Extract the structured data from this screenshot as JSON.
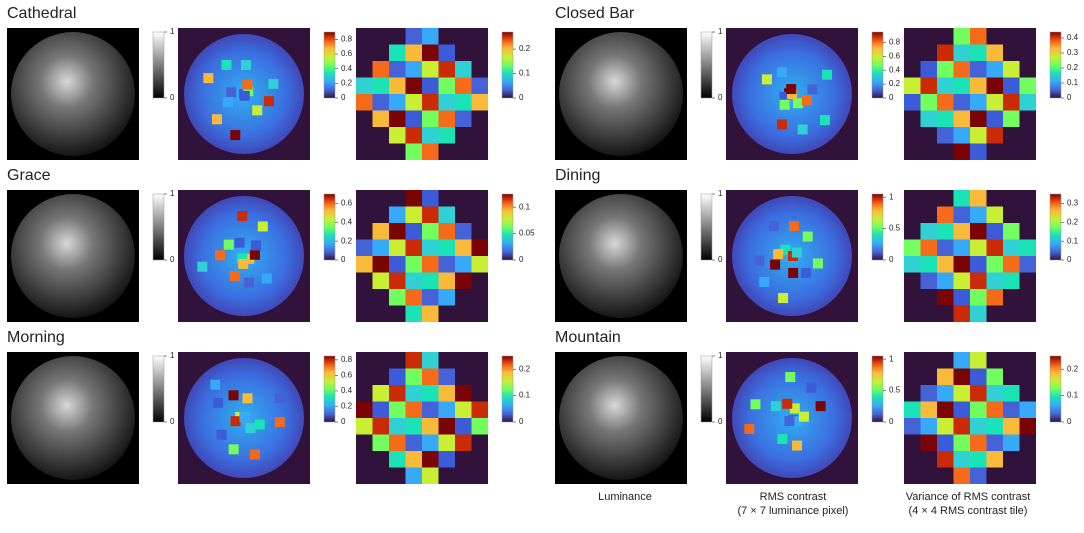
{
  "panels": [
    {
      "title": "Cathedral",
      "luminance": {
        "lim": [
          0,
          1
        ],
        "ticks": [
          0,
          1
        ]
      },
      "rms": {
        "lim": [
          0,
          0.9
        ],
        "ticks": [
          0,
          0.2,
          0.4,
          0.6,
          0.8
        ]
      },
      "variance": {
        "lim": [
          0,
          0.27
        ],
        "ticks": [
          0,
          0.1,
          0.2
        ]
      }
    },
    {
      "title": "Closed Bar",
      "luminance": {
        "lim": [
          0,
          1
        ],
        "ticks": [
          0,
          1
        ]
      },
      "rms": {
        "lim": [
          0,
          0.95
        ],
        "ticks": [
          0,
          0.2,
          0.4,
          0.6,
          0.8
        ]
      },
      "variance": {
        "lim": [
          0,
          0.44
        ],
        "ticks": [
          0,
          0.1,
          0.2,
          0.3,
          0.4
        ]
      }
    },
    {
      "title": "Grace",
      "luminance": {
        "lim": [
          0,
          1
        ],
        "ticks": [
          0,
          1
        ]
      },
      "rms": {
        "lim": [
          0,
          0.7
        ],
        "ticks": [
          0,
          0.2,
          0.4,
          0.6
        ]
      },
      "variance": {
        "lim": [
          0,
          0.125
        ],
        "ticks": [
          0,
          0.05,
          0.1
        ]
      }
    },
    {
      "title": "Dining",
      "luminance": {
        "lim": [
          0,
          1
        ],
        "ticks": [
          0,
          1
        ]
      },
      "rms": {
        "lim": [
          0,
          1.05
        ],
        "ticks": [
          0,
          0.5,
          1
        ]
      },
      "variance": {
        "lim": [
          0,
          0.35
        ],
        "ticks": [
          0,
          0.1,
          0.2,
          0.3
        ]
      }
    },
    {
      "title": "Morning",
      "luminance": {
        "lim": [
          0,
          1
        ],
        "ticks": [
          0,
          1
        ]
      },
      "rms": {
        "lim": [
          0,
          0.85
        ],
        "ticks": [
          0,
          0.2,
          0.4,
          0.6,
          0.8
        ]
      },
      "variance": {
        "lim": [
          0,
          0.25
        ],
        "ticks": [
          0,
          0.1,
          0.2
        ]
      }
    },
    {
      "title": "Mountain",
      "luminance": {
        "lim": [
          0,
          1
        ],
        "ticks": [
          0,
          1
        ]
      },
      "rms": {
        "lim": [
          0,
          1.05
        ],
        "ticks": [
          0,
          0.5,
          1
        ]
      },
      "variance": {
        "lim": [
          0,
          0.25
        ],
        "ticks": [
          0,
          0.1,
          0.2
        ]
      }
    }
  ],
  "captions": {
    "luminance": [
      "Luminance"
    ],
    "rms": [
      "RMS contrast",
      "(7 × 7 luminance pixel)"
    ],
    "variance": [
      "Variance of RMS contrast",
      "(4 × 4 RMS contrast tile)"
    ]
  }
}
